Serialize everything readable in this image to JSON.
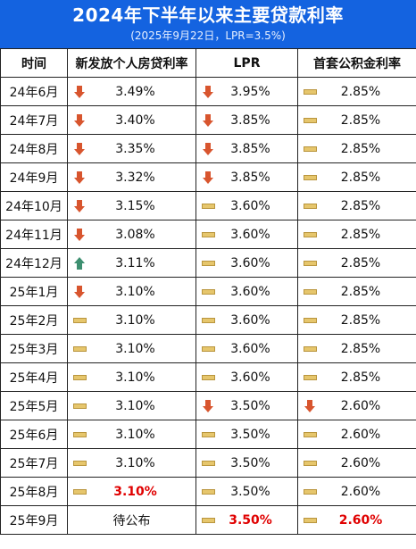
{
  "header": {
    "title": "2024年下半年以来主要贷款利率",
    "subtitle": "(2025年9月22日，LPR=3.5%)"
  },
  "columns": [
    "时间",
    "新发放个人房贷利率",
    "LPR",
    "首套公积金利率"
  ],
  "colors": {
    "down": "#d8552e",
    "up": "#3d8f70",
    "flat": "#e6c66c",
    "highlight": "#e00000",
    "banner": "#1463e0"
  },
  "rows": [
    {
      "month": "24年6月",
      "mortgage": {
        "value": "3.49%",
        "trend": "down"
      },
      "lpr": {
        "value": "3.95%",
        "trend": "down"
      },
      "fund": {
        "value": "2.85%",
        "trend": "flat"
      }
    },
    {
      "month": "24年7月",
      "mortgage": {
        "value": "3.40%",
        "trend": "down"
      },
      "lpr": {
        "value": "3.85%",
        "trend": "down"
      },
      "fund": {
        "value": "2.85%",
        "trend": "flat"
      }
    },
    {
      "month": "24年8月",
      "mortgage": {
        "value": "3.35%",
        "trend": "down"
      },
      "lpr": {
        "value": "3.85%",
        "trend": "down"
      },
      "fund": {
        "value": "2.85%",
        "trend": "flat"
      }
    },
    {
      "month": "24年9月",
      "mortgage": {
        "value": "3.32%",
        "trend": "down"
      },
      "lpr": {
        "value": "3.85%",
        "trend": "down"
      },
      "fund": {
        "value": "2.85%",
        "trend": "flat"
      }
    },
    {
      "month": "24年10月",
      "mortgage": {
        "value": "3.15%",
        "trend": "down"
      },
      "lpr": {
        "value": "3.60%",
        "trend": "flat"
      },
      "fund": {
        "value": "2.85%",
        "trend": "flat"
      }
    },
    {
      "month": "24年11月",
      "mortgage": {
        "value": "3.08%",
        "trend": "down"
      },
      "lpr": {
        "value": "3.60%",
        "trend": "flat"
      },
      "fund": {
        "value": "2.85%",
        "trend": "flat"
      }
    },
    {
      "month": "24年12月",
      "mortgage": {
        "value": "3.11%",
        "trend": "up"
      },
      "lpr": {
        "value": "3.60%",
        "trend": "flat"
      },
      "fund": {
        "value": "2.85%",
        "trend": "flat"
      }
    },
    {
      "month": "25年1月",
      "mortgage": {
        "value": "3.10%",
        "trend": "down"
      },
      "lpr": {
        "value": "3.60%",
        "trend": "flat"
      },
      "fund": {
        "value": "2.85%",
        "trend": "flat"
      }
    },
    {
      "month": "25年2月",
      "mortgage": {
        "value": "3.10%",
        "trend": "flat"
      },
      "lpr": {
        "value": "3.60%",
        "trend": "flat"
      },
      "fund": {
        "value": "2.85%",
        "trend": "flat"
      }
    },
    {
      "month": "25年3月",
      "mortgage": {
        "value": "3.10%",
        "trend": "flat"
      },
      "lpr": {
        "value": "3.60%",
        "trend": "flat"
      },
      "fund": {
        "value": "2.85%",
        "trend": "flat"
      }
    },
    {
      "month": "25年4月",
      "mortgage": {
        "value": "3.10%",
        "trend": "flat"
      },
      "lpr": {
        "value": "3.60%",
        "trend": "flat"
      },
      "fund": {
        "value": "2.85%",
        "trend": "flat"
      }
    },
    {
      "month": "25年5月",
      "mortgage": {
        "value": "3.10%",
        "trend": "flat"
      },
      "lpr": {
        "value": "3.50%",
        "trend": "down"
      },
      "fund": {
        "value": "2.60%",
        "trend": "down"
      }
    },
    {
      "month": "25年6月",
      "mortgage": {
        "value": "3.10%",
        "trend": "flat"
      },
      "lpr": {
        "value": "3.50%",
        "trend": "flat"
      },
      "fund": {
        "value": "2.60%",
        "trend": "flat"
      }
    },
    {
      "month": "25年7月",
      "mortgage": {
        "value": "3.10%",
        "trend": "flat"
      },
      "lpr": {
        "value": "3.50%",
        "trend": "flat"
      },
      "fund": {
        "value": "2.60%",
        "trend": "flat"
      }
    },
    {
      "month": "25年8月",
      "mortgage": {
        "value": "3.10%",
        "trend": "flat",
        "highlight": true
      },
      "lpr": {
        "value": "3.50%",
        "trend": "flat"
      },
      "fund": {
        "value": "2.60%",
        "trend": "flat"
      }
    },
    {
      "month": "25年9月",
      "mortgage": {
        "value": "待公布",
        "trend": "none"
      },
      "lpr": {
        "value": "3.50%",
        "trend": "flat",
        "highlight": true
      },
      "fund": {
        "value": "2.60%",
        "trend": "flat",
        "highlight": true
      }
    }
  ]
}
